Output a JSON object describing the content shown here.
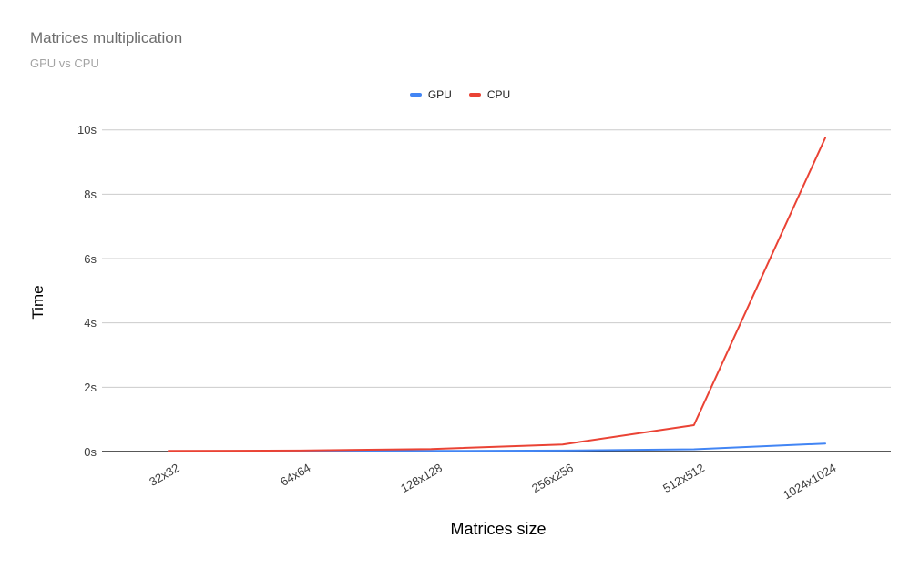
{
  "chart_data": {
    "type": "line",
    "title": "Matrices multiplication",
    "subtitle": "GPU vs CPU",
    "xlabel": "Matrices size",
    "ylabel": "Time",
    "categories": [
      "32x32",
      "64x64",
      "128x128",
      "256x256",
      "512x512",
      "1024x1024"
    ],
    "series": [
      {
        "name": "GPU",
        "color": "#4285F4",
        "values": [
          0.01,
          0.015,
          0.02,
          0.03,
          0.07,
          0.25
        ]
      },
      {
        "name": "CPU",
        "color": "#EA4335",
        "values": [
          0.02,
          0.03,
          0.08,
          0.22,
          0.82,
          9.75
        ]
      }
    ],
    "y_ticks": [
      {
        "label": "0s",
        "value": 0
      },
      {
        "label": "2s",
        "value": 2
      },
      {
        "label": "4s",
        "value": 4
      },
      {
        "label": "6s",
        "value": 6
      },
      {
        "label": "8s",
        "value": 8
      },
      {
        "label": "10s",
        "value": 10
      }
    ],
    "ylim": [
      0,
      10
    ],
    "grid": true,
    "legend_position": "top-center",
    "colors": {
      "title_text": "#6e6e6e",
      "subtitle_text": "#a3a3a3",
      "gridline": "#cccccc",
      "axis_line": "#212121",
      "tick_text": "#3c3c3c"
    }
  }
}
